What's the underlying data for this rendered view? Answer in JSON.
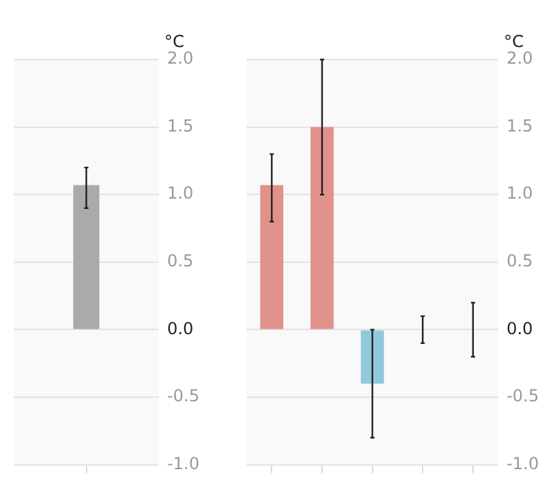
{
  "chart_data": [
    {
      "type": "bar",
      "categories": [
        null
      ],
      "values": [
        1.07
      ],
      "colors": [
        "#aaaaaa"
      ],
      "errors": [
        [
          0.9,
          1.2
        ]
      ],
      "ylabel": "°C",
      "ylim": [
        -1,
        2
      ],
      "yticks": [
        {
          "value": -1,
          "label": "-1.0"
        },
        {
          "value": -0.5,
          "label": "-0.5"
        },
        {
          "value": 0,
          "label": "0.0"
        },
        {
          "value": 0.5,
          "label": "0.5"
        },
        {
          "value": 1,
          "label": "1.0"
        },
        {
          "value": 1.5,
          "label": "1.5"
        },
        {
          "value": 2,
          "label": "2.0"
        }
      ],
      "grid": "y"
    },
    {
      "type": "bar",
      "categories": [
        null,
        null,
        null,
        null,
        null
      ],
      "values": [
        1.07,
        1.5,
        -0.4,
        0,
        0
      ],
      "colors": [
        "#e0928a",
        "#e0928a",
        "#92c8dc",
        "#cccccc",
        "#cccccc"
      ],
      "errors": [
        [
          0.8,
          1.3
        ],
        [
          1.0,
          2.0
        ],
        [
          -0.8,
          0.0
        ],
        [
          -0.1,
          0.1
        ],
        [
          -0.2,
          0.2
        ]
      ],
      "ylabel": "°C",
      "ylim": [
        -1,
        2
      ],
      "yticks": [
        {
          "value": -1,
          "label": "-1.0"
        },
        {
          "value": -0.5,
          "label": "-0.5"
        },
        {
          "value": 0,
          "label": "0.0"
        },
        {
          "value": 0.5,
          "label": "0.5"
        },
        {
          "value": 1,
          "label": "1.0"
        },
        {
          "value": 1.5,
          "label": "1.5"
        },
        {
          "value": 2,
          "label": "2.0"
        }
      ],
      "grid": "y"
    }
  ]
}
